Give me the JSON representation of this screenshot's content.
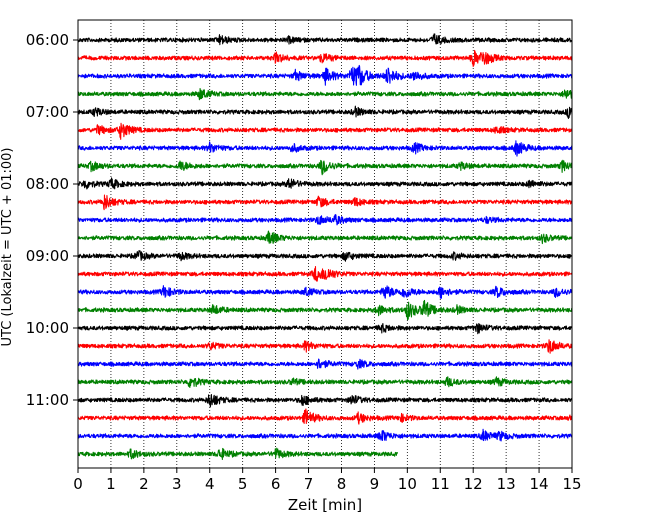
{
  "chart_data": {
    "type": "line",
    "chart_kind": "helicorder (seismogram drum plot)",
    "xlabel": "Zeit  [min]",
    "ylabel": "UTC (Lokalzeit = UTC + 01:00)",
    "xlim": [
      0,
      15
    ],
    "x_ticks": [
      0,
      1,
      2,
      3,
      4,
      5,
      6,
      7,
      8,
      9,
      10,
      11,
      12,
      13,
      14,
      15
    ],
    "x_tick_labels": [
      "0",
      "1",
      "2",
      "3",
      "4",
      "5",
      "6",
      "7",
      "8",
      "9",
      "10",
      "11",
      "12",
      "13",
      "14",
      "15"
    ],
    "y_tick_labels": [
      "06:00",
      "07:00",
      "08:00",
      "09:00",
      "10:00",
      "11:00"
    ],
    "y_tick_rows": [
      0,
      4,
      8,
      12,
      16,
      20
    ],
    "grid": "vertical dotted lines at each minute",
    "trace_colors": [
      "#000000",
      "#ff0000",
      "#0000ff",
      "#008000"
    ],
    "trace_duration_min": 15,
    "traces": [
      {
        "start": "06:00",
        "end_min": 15,
        "bursts": [
          {
            "t": 4.3,
            "a": 0.45
          },
          {
            "t": 6.4,
            "a": 0.25
          },
          {
            "t": 10.8,
            "a": 0.55
          }
        ]
      },
      {
        "start": "06:15",
        "end_min": 15,
        "bursts": [
          {
            "t": 6.0,
            "a": 0.5
          },
          {
            "t": 7.4,
            "a": 0.5
          },
          {
            "t": 12.0,
            "a": 0.75
          },
          {
            "t": 12.3,
            "a": 0.7
          }
        ]
      },
      {
        "start": "06:30",
        "end_min": 15,
        "bursts": [
          {
            "t": 6.6,
            "a": 0.5
          },
          {
            "t": 7.5,
            "a": 0.8
          },
          {
            "t": 8.3,
            "a": 1.0
          },
          {
            "t": 8.5,
            "a": 0.9
          },
          {
            "t": 9.4,
            "a": 1.0
          },
          {
            "t": 10.2,
            "a": 0.5
          }
        ]
      },
      {
        "start": "06:45",
        "end_min": 15,
        "bursts": [
          {
            "t": 3.7,
            "a": 0.55
          },
          {
            "t": 14.8,
            "a": 0.55
          }
        ]
      },
      {
        "start": "07:00",
        "end_min": 15,
        "bursts": [
          {
            "t": 0.5,
            "a": 0.4
          },
          {
            "t": 8.4,
            "a": 0.45
          },
          {
            "t": 14.9,
            "a": 0.6
          }
        ]
      },
      {
        "start": "07:15",
        "end_min": 15,
        "bursts": [
          {
            "t": 0.6,
            "a": 0.45
          },
          {
            "t": 1.3,
            "a": 0.9
          },
          {
            "t": 12.7,
            "a": 0.35
          }
        ]
      },
      {
        "start": "07:30",
        "end_min": 15,
        "bursts": [
          {
            "t": 4.0,
            "a": 0.5
          },
          {
            "t": 6.5,
            "a": 0.4
          },
          {
            "t": 10.2,
            "a": 0.5
          },
          {
            "t": 13.3,
            "a": 0.75
          }
        ]
      },
      {
        "start": "07:45",
        "end_min": 15,
        "bursts": [
          {
            "t": 0.4,
            "a": 0.45
          },
          {
            "t": 3.1,
            "a": 0.5
          },
          {
            "t": 7.4,
            "a": 0.8
          },
          {
            "t": 11.6,
            "a": 0.35
          },
          {
            "t": 14.7,
            "a": 0.5
          }
        ]
      },
      {
        "start": "08:00",
        "end_min": 15,
        "bursts": [
          {
            "t": 0.2,
            "a": 0.45
          },
          {
            "t": 1.0,
            "a": 0.5
          },
          {
            "t": 6.4,
            "a": 0.55
          },
          {
            "t": 13.7,
            "a": 0.35
          }
        ]
      },
      {
        "start": "08:15",
        "end_min": 15,
        "bursts": [
          {
            "t": 0.8,
            "a": 0.8
          },
          {
            "t": 7.3,
            "a": 0.55
          },
          {
            "t": 8.4,
            "a": 0.4
          }
        ]
      },
      {
        "start": "08:30",
        "end_min": 15,
        "bursts": [
          {
            "t": 7.3,
            "a": 0.45
          },
          {
            "t": 7.8,
            "a": 0.4
          },
          {
            "t": 12.4,
            "a": 0.25
          }
        ]
      },
      {
        "start": "08:45",
        "end_min": 15,
        "bursts": [
          {
            "t": 5.8,
            "a": 0.7
          },
          {
            "t": 14.1,
            "a": 0.4
          }
        ]
      },
      {
        "start": "09:00",
        "end_min": 15,
        "bursts": [
          {
            "t": 1.8,
            "a": 0.5
          },
          {
            "t": 3.1,
            "a": 0.35
          },
          {
            "t": 8.1,
            "a": 0.45
          },
          {
            "t": 11.4,
            "a": 0.3
          }
        ]
      },
      {
        "start": "09:15",
        "end_min": 15,
        "bursts": [
          {
            "t": 7.2,
            "a": 0.75
          },
          {
            "t": 7.5,
            "a": 0.6
          }
        ]
      },
      {
        "start": "09:30",
        "end_min": 15,
        "bursts": [
          {
            "t": 2.6,
            "a": 0.6
          },
          {
            "t": 6.9,
            "a": 0.4
          },
          {
            "t": 9.3,
            "a": 0.75
          },
          {
            "t": 9.9,
            "a": 0.6
          },
          {
            "t": 11.0,
            "a": 0.6
          },
          {
            "t": 12.7,
            "a": 0.55
          },
          {
            "t": 14.5,
            "a": 0.45
          }
        ]
      },
      {
        "start": "09:45",
        "end_min": 15,
        "bursts": [
          {
            "t": 4.1,
            "a": 0.5
          },
          {
            "t": 9.1,
            "a": 0.5
          },
          {
            "t": 10.0,
            "a": 0.95
          },
          {
            "t": 10.5,
            "a": 0.9
          },
          {
            "t": 11.5,
            "a": 0.35
          }
        ]
      },
      {
        "start": "10:00",
        "end_min": 15,
        "bursts": [
          {
            "t": 9.2,
            "a": 0.4
          },
          {
            "t": 12.1,
            "a": 0.5
          }
        ]
      },
      {
        "start": "10:15",
        "end_min": 15,
        "bursts": [
          {
            "t": 4.0,
            "a": 0.35
          },
          {
            "t": 6.9,
            "a": 0.5
          },
          {
            "t": 14.3,
            "a": 0.75
          }
        ]
      },
      {
        "start": "10:30",
        "end_min": 15,
        "bursts": [
          {
            "t": 7.3,
            "a": 0.5
          },
          {
            "t": 8.5,
            "a": 0.4
          }
        ]
      },
      {
        "start": "10:45",
        "end_min": 15,
        "bursts": [
          {
            "t": 3.4,
            "a": 0.6
          },
          {
            "t": 6.5,
            "a": 0.3
          },
          {
            "t": 11.2,
            "a": 0.45
          },
          {
            "t": 12.7,
            "a": 0.4
          }
        ]
      },
      {
        "start": "11:00",
        "end_min": 15,
        "bursts": [
          {
            "t": 4.0,
            "a": 0.8
          },
          {
            "t": 6.8,
            "a": 0.55
          },
          {
            "t": 8.3,
            "a": 0.5
          }
        ]
      },
      {
        "start": "11:15",
        "end_min": 15,
        "bursts": [
          {
            "t": 6.9,
            "a": 0.9
          },
          {
            "t": 8.5,
            "a": 0.5
          },
          {
            "t": 9.8,
            "a": 0.35
          },
          {
            "t": 15.0,
            "a": 0.5
          }
        ]
      },
      {
        "start": "11:30",
        "end_min": 15,
        "bursts": [
          {
            "t": 9.2,
            "a": 0.6
          },
          {
            "t": 12.3,
            "a": 0.55
          },
          {
            "t": 12.8,
            "a": 0.4
          }
        ]
      },
      {
        "start": "11:45",
        "end_min": 9.7,
        "bursts": [
          {
            "t": 1.6,
            "a": 0.45
          },
          {
            "t": 4.3,
            "a": 0.6
          },
          {
            "t": 6.0,
            "a": 0.5
          }
        ]
      }
    ]
  }
}
